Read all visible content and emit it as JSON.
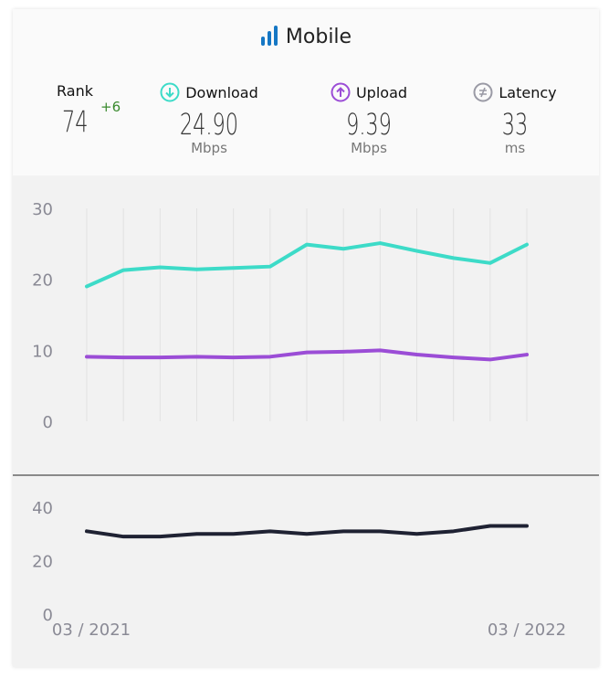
{
  "header": {
    "title": "Mobile",
    "icon": "signal-bars-icon"
  },
  "stats": {
    "rank": {
      "label": "Rank",
      "value": "74",
      "change": "+6",
      "change_color": "#3a8a2e"
    },
    "download": {
      "label": "Download",
      "value": "24.90",
      "unit": "Mbps",
      "icon": "arrow-down-circle-icon",
      "color": "#3ddbc8"
    },
    "upload": {
      "label": "Upload",
      "value": "9.39",
      "unit": "Mbps",
      "icon": "arrow-up-circle-icon",
      "color": "#9b4dd6"
    },
    "latency": {
      "label": "Latency",
      "value": "33",
      "unit": "ms",
      "icon": "latency-circle-icon",
      "color": "#9a9aa5"
    }
  },
  "chart_data": [
    {
      "type": "line",
      "ylim": [
        0,
        30
      ],
      "yticks": [
        "0",
        "10",
        "20",
        "30"
      ],
      "grid": "vertical",
      "series": [
        {
          "color": "#3ddbc8",
          "values": [
            19.0,
            21.3,
            21.7,
            21.4,
            21.6,
            21.8,
            24.9,
            24.3,
            25.1,
            24.0,
            23.0,
            22.3,
            24.9
          ]
        },
        {
          "color": "#9b4dd6",
          "values": [
            9.1,
            9.0,
            9.0,
            9.1,
            9.0,
            9.1,
            9.7,
            9.8,
            10.0,
            9.4,
            9.0,
            8.7,
            9.39
          ]
        }
      ]
    },
    {
      "type": "line",
      "ylim": [
        0,
        40
      ],
      "yticks": [
        "0",
        "20",
        "40"
      ],
      "series": [
        {
          "color": "#1f2233",
          "values": [
            31,
            29,
            29,
            30,
            30,
            31,
            30,
            31,
            31,
            30,
            31,
            33,
            33
          ]
        }
      ],
      "xticks": [
        "03 / 2021",
        "03 / 2022"
      ]
    }
  ]
}
